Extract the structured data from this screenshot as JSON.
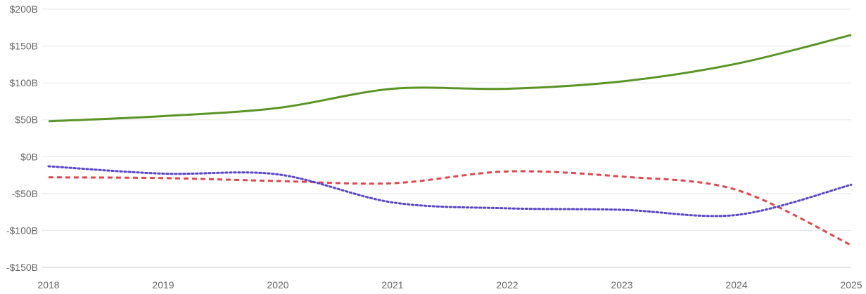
{
  "chart_data": {
    "type": "line",
    "title": "",
    "xlabel": "",
    "ylabel": "",
    "x": [
      2018,
      2019,
      2020,
      2021,
      2022,
      2023,
      2024,
      2025
    ],
    "x_tick_labels": [
      "2018",
      "2019",
      "2020",
      "2021",
      "2022",
      "2023",
      "2024",
      "2025"
    ],
    "y_ticks": [
      200,
      150,
      100,
      50,
      0,
      -50,
      -100,
      -150
    ],
    "y_tick_labels": [
      "$200B",
      "$150B",
      "$100B",
      "$50B",
      "$0B",
      "-$50B",
      "-$100B",
      "-$150B"
    ],
    "ylim": [
      -150,
      200
    ],
    "xlim": [
      2018,
      2025
    ],
    "grid": true,
    "legend": "none",
    "series": [
      {
        "values": [
          48,
          55,
          66,
          92,
          92,
          102,
          126,
          165
        ],
        "color": "#5a9424",
        "style": "solid"
      },
      {
        "values": [
          -28,
          -29,
          -33,
          -36,
          -20,
          -27,
          -45,
          -120
        ],
        "color": "#e0474c",
        "style": "dashed"
      },
      {
        "values": [
          -13,
          -23,
          -24,
          -62,
          -70,
          -72,
          -79,
          -38
        ],
        "color": "#5b45c8",
        "style": "dotted"
      }
    ]
  }
}
